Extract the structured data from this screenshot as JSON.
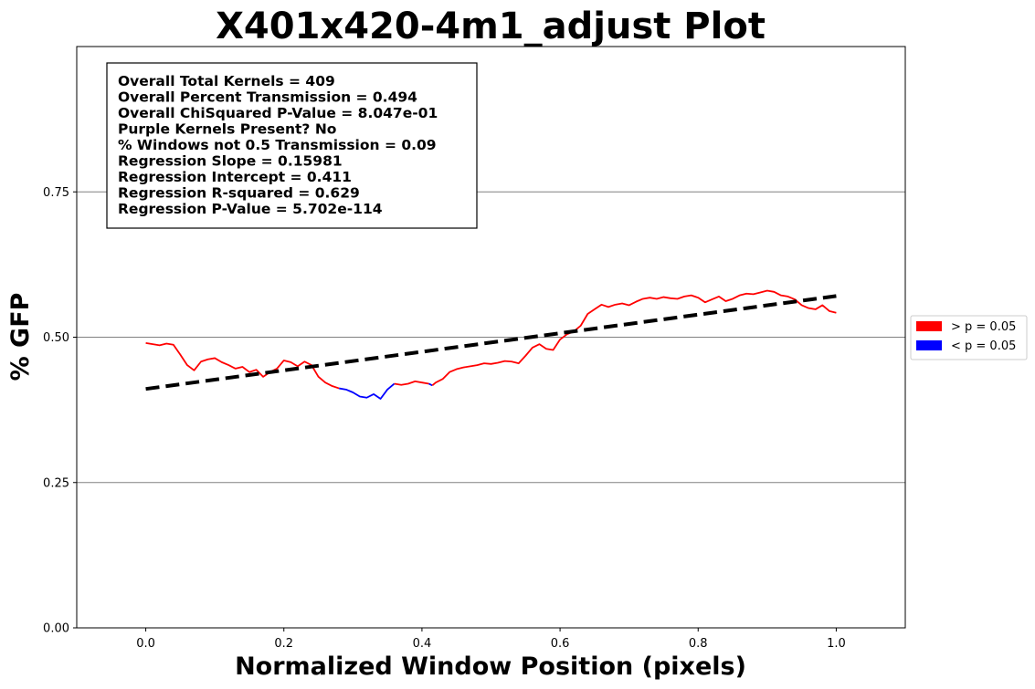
{
  "chart_data": {
    "type": "line",
    "title": "X401x420-4m1_adjust Plot",
    "xlabel": "Normalized Window Position (pixels)",
    "ylabel": "% GFP",
    "xlim": [
      -0.1,
      1.1
    ],
    "ylim": [
      0.0,
      1.0
    ],
    "xticks": [
      0.0,
      0.2,
      0.4,
      0.6,
      0.8,
      1.0
    ],
    "xtick_labels": [
      "0.0",
      "0.2",
      "0.4",
      "0.6",
      "0.8",
      "1.0"
    ],
    "yticks": [
      0.0,
      0.25,
      0.5,
      0.75
    ],
    "ytick_labels": [
      "0.00",
      "0.25",
      "0.50",
      "0.75"
    ],
    "grid": "horizontal",
    "gridline_color": "#808080",
    "stats_lines": [
      "Overall Total Kernels = 409",
      "Overall Percent Transmission = 0.494",
      "Overall ChiSquared P-Value = 8.047e-01",
      "Purple Kernels Present? No",
      "% Windows not 0.5 Transmission = 0.09",
      "Regression Slope = 0.15981",
      "Regression Intercept = 0.411",
      "Regression R-squared = 0.629",
      "Regression P-Value = 5.702e-114"
    ],
    "legend": {
      "placement": "outside-right",
      "entries": [
        {
          "label": "> p = 0.05",
          "color": "#ff0000"
        },
        {
          "label": "< p = 0.05",
          "color": "#0000ff"
        }
      ]
    },
    "regression": {
      "slope": 0.15981,
      "intercept": 0.411,
      "color": "#000000",
      "style": "dashed"
    },
    "series": [
      {
        "color": "#ff0000",
        "x": [
          0.0,
          0.01,
          0.02,
          0.03,
          0.04,
          0.05,
          0.06,
          0.07,
          0.08,
          0.09,
          0.1,
          0.11,
          0.12,
          0.13,
          0.14,
          0.15,
          0.16,
          0.17,
          0.18,
          0.19,
          0.2,
          0.21,
          0.22,
          0.23,
          0.24,
          0.25,
          0.26,
          0.27,
          0.28
        ],
        "y": [
          0.49,
          0.488,
          0.486,
          0.489,
          0.487,
          0.47,
          0.452,
          0.443,
          0.458,
          0.462,
          0.464,
          0.457,
          0.452,
          0.446,
          0.449,
          0.44,
          0.444,
          0.432,
          0.44,
          0.446,
          0.46,
          0.457,
          0.45,
          0.458,
          0.452,
          0.432,
          0.422,
          0.416,
          0.412
        ]
      },
      {
        "color": "#0000ff",
        "x": [
          0.28,
          0.29,
          0.3,
          0.31,
          0.32,
          0.33,
          0.34,
          0.35,
          0.36
        ],
        "y": [
          0.412,
          0.41,
          0.405,
          0.398,
          0.396,
          0.402,
          0.394,
          0.41,
          0.42
        ]
      },
      {
        "color": "#ff0000",
        "x": [
          0.36,
          0.37,
          0.38,
          0.39,
          0.4,
          0.41
        ],
        "y": [
          0.42,
          0.418,
          0.42,
          0.424,
          0.422,
          0.42
        ]
      },
      {
        "color": "#0000ff",
        "x": [
          0.41,
          0.415
        ],
        "y": [
          0.42,
          0.417
        ]
      },
      {
        "color": "#ff0000",
        "x": [
          0.415,
          0.42,
          0.43,
          0.44,
          0.45,
          0.46,
          0.47,
          0.48,
          0.49,
          0.5,
          0.51,
          0.52,
          0.53,
          0.54,
          0.55,
          0.56,
          0.57,
          0.58,
          0.59,
          0.6,
          0.61,
          0.62,
          0.63,
          0.64,
          0.65,
          0.66,
          0.67,
          0.68,
          0.69,
          0.7,
          0.71,
          0.72,
          0.73,
          0.74,
          0.75,
          0.76,
          0.77,
          0.78,
          0.79,
          0.8,
          0.81,
          0.82,
          0.83,
          0.84,
          0.85,
          0.86,
          0.87,
          0.88,
          0.89,
          0.9,
          0.91,
          0.92,
          0.93,
          0.94,
          0.95,
          0.96,
          0.97,
          0.98,
          0.99,
          1.0
        ],
        "y": [
          0.417,
          0.422,
          0.428,
          0.44,
          0.445,
          0.448,
          0.45,
          0.452,
          0.455,
          0.454,
          0.456,
          0.459,
          0.458,
          0.455,
          0.468,
          0.482,
          0.488,
          0.48,
          0.478,
          0.496,
          0.505,
          0.51,
          0.52,
          0.54,
          0.548,
          0.556,
          0.552,
          0.556,
          0.558,
          0.555,
          0.561,
          0.566,
          0.568,
          0.566,
          0.569,
          0.567,
          0.566,
          0.57,
          0.572,
          0.568,
          0.56,
          0.565,
          0.57,
          0.562,
          0.566,
          0.572,
          0.575,
          0.574,
          0.577,
          0.58,
          0.578,
          0.572,
          0.57,
          0.565,
          0.555,
          0.55,
          0.548,
          0.555,
          0.545,
          0.542
        ]
      }
    ]
  }
}
